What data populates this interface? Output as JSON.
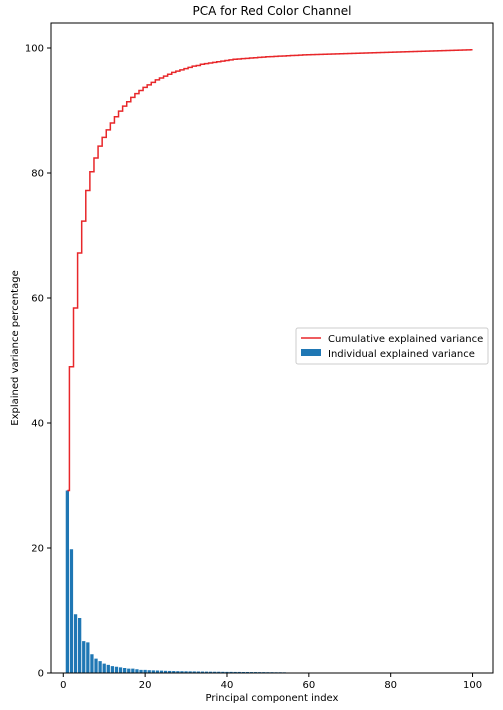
{
  "chart_data": {
    "type": "bar",
    "title": "PCA for Red Color Channel",
    "xlabel": "Principal component index",
    "ylabel": "Explained variance percentage",
    "xlim": [
      -3,
      105
    ],
    "ylim": [
      0,
      104
    ],
    "xticks": [
      0,
      20,
      40,
      60,
      80,
      100
    ],
    "yticks": [
      0,
      20,
      40,
      60,
      80,
      100
    ],
    "legend_position": "center-right",
    "series": [
      {
        "name": "Cumulative explained variance",
        "type": "step",
        "color": "#e8272a",
        "x": [
          1,
          2,
          3,
          4,
          5,
          6,
          7,
          8,
          9,
          10,
          11,
          12,
          13,
          14,
          15,
          16,
          17,
          18,
          19,
          20,
          21,
          22,
          23,
          24,
          25,
          26,
          27,
          28,
          29,
          30,
          31,
          32,
          33,
          34,
          35,
          36,
          37,
          38,
          39,
          40,
          41,
          42,
          43,
          44,
          45,
          46,
          47,
          48,
          49,
          50,
          51,
          52,
          53,
          54,
          55,
          56,
          57,
          58,
          59,
          60,
          61,
          62,
          63,
          64,
          65,
          66,
          67,
          68,
          69,
          70,
          71,
          72,
          73,
          74,
          75,
          76,
          77,
          78,
          79,
          80,
          81,
          82,
          83,
          84,
          85,
          86,
          87,
          88,
          89,
          90,
          91,
          92,
          93,
          94,
          95,
          96,
          97,
          98,
          99,
          100
        ],
        "values": [
          29.2,
          49.0,
          58.4,
          67.2,
          72.3,
          77.2,
          80.2,
          82.4,
          84.3,
          85.7,
          86.9,
          88.0,
          89.0,
          89.9,
          90.7,
          91.4,
          92.1,
          92.7,
          93.2,
          93.7,
          94.1,
          94.5,
          94.9,
          95.2,
          95.5,
          95.8,
          96.1,
          96.3,
          96.5,
          96.7,
          96.9,
          97.1,
          97.2,
          97.4,
          97.5,
          97.6,
          97.7,
          97.8,
          97.9,
          98.0,
          98.1,
          98.2,
          98.25,
          98.3,
          98.35,
          98.4,
          98.45,
          98.5,
          98.55,
          98.6,
          98.63,
          98.66,
          98.7,
          98.73,
          98.76,
          98.8,
          98.83,
          98.86,
          98.9,
          98.92,
          98.94,
          98.96,
          98.98,
          99.0,
          99.02,
          99.04,
          99.06,
          99.08,
          99.1,
          99.12,
          99.14,
          99.16,
          99.18,
          99.2,
          99.22,
          99.24,
          99.26,
          99.28,
          99.3,
          99.32,
          99.34,
          99.36,
          99.38,
          99.4,
          99.42,
          99.44,
          99.46,
          99.48,
          99.5,
          99.52,
          99.54,
          99.56,
          99.58,
          99.6,
          99.62,
          99.64,
          99.66,
          99.68,
          99.7,
          99.72
        ]
      },
      {
        "name": "Individual explained variance",
        "type": "bar",
        "color": "#1f77b4",
        "x": [
          1,
          2,
          3,
          4,
          5,
          6,
          7,
          8,
          9,
          10,
          11,
          12,
          13,
          14,
          15,
          16,
          17,
          18,
          19,
          20,
          21,
          22,
          23,
          24,
          25,
          26,
          27,
          28,
          29,
          30,
          31,
          32,
          33,
          34,
          35,
          36,
          37,
          38,
          39,
          40,
          41,
          42,
          43,
          44,
          45,
          46,
          47,
          48,
          49,
          50,
          51,
          52,
          53,
          54
        ],
        "values": [
          29.2,
          19.8,
          9.4,
          8.8,
          5.1,
          4.9,
          3.0,
          2.3,
          1.9,
          1.5,
          1.3,
          1.1,
          1.0,
          0.9,
          0.8,
          0.7,
          0.7,
          0.6,
          0.5,
          0.5,
          0.45,
          0.42,
          0.4,
          0.38,
          0.35,
          0.33,
          0.31,
          0.29,
          0.28,
          0.27,
          0.26,
          0.25,
          0.24,
          0.23,
          0.22,
          0.21,
          0.2,
          0.2,
          0.19,
          0.18,
          0.18,
          0.17,
          0.17,
          0.16,
          0.16,
          0.15,
          0.15,
          0.14,
          0.14,
          0.13,
          0.13,
          0.12,
          0.12,
          0.11
        ]
      }
    ]
  }
}
